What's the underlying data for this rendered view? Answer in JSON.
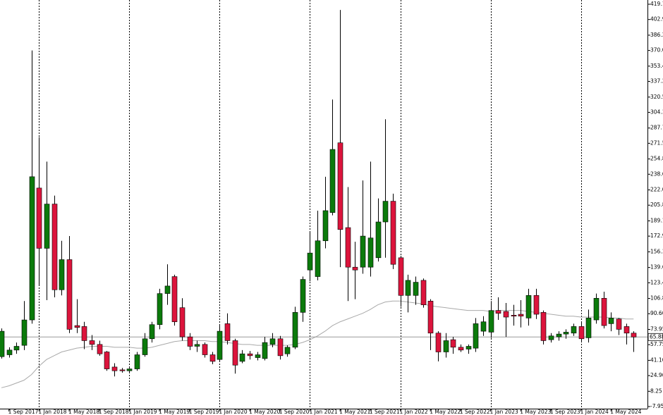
{
  "chart_data": {
    "type": "candlestick",
    "x": [
      "1 Aug 2017",
      "1 Sep 2017",
      "1 Oct 2017",
      "1 Nov 2017",
      "1 Dec 2017",
      "1 Jan 2018",
      "1 Feb 2018",
      "1 Mar 2018",
      "1 Apr 2018",
      "1 May 2018",
      "1 Jun 2018",
      "1 Jul 2018",
      "1 Aug 2018",
      "1 Sep 2018",
      "1 Oct 2018",
      "1 Nov 2018",
      "1 Dec 2018",
      "1 Jan 2019",
      "1 Feb 2019",
      "1 Mar 2019",
      "1 Apr 2019",
      "1 May 2019",
      "1 Jun 2019",
      "1 Jul 2019",
      "1 Aug 2019",
      "1 Sep 2019",
      "1 Oct 2019",
      "1 Nov 2019",
      "1 Dec 2019",
      "1 Jan 2020",
      "1 Feb 2020",
      "1 Mar 2020",
      "1 Apr 2020",
      "1 May 2020",
      "1 Jun 2020",
      "1 Jul 2020",
      "1 Aug 2020",
      "1 Sep 2020",
      "1 Oct 2020",
      "1 Nov 2020",
      "1 Dec 2020",
      "1 Jan 2021",
      "1 Feb 2021",
      "1 Mar 2021",
      "1 Apr 2021",
      "1 May 2021",
      "1 Jun 2021",
      "1 Jul 2021",
      "1 Aug 2021",
      "1 Sep 2021",
      "1 Oct 2021",
      "1 Nov 2021",
      "1 Dec 2021",
      "1 Jan 2022",
      "1 Feb 2022",
      "1 Mar 2022",
      "1 Apr 2022",
      "1 May 2022",
      "1 Jun 2022",
      "1 Jul 2022",
      "1 Aug 2022",
      "1 Sep 2022",
      "1 Oct 2022",
      "1 Nov 2022",
      "1 Dec 2022",
      "1 Jan 2023",
      "1 Feb 2023",
      "1 Mar 2023",
      "1 Apr 2023",
      "1 May 2023",
      "1 Jun 2023",
      "1 Jul 2023",
      "1 Aug 2023",
      "1 Sep 2023",
      "1 Oct 2023",
      "1 Nov 2023",
      "1 Dec 2023",
      "1 Jan 2024",
      "1 Feb 2024",
      "1 Mar 2024",
      "1 Apr 2024",
      "1 May 2024",
      "1 Jun 2024",
      "1 Jul 2024",
      "1 Aug 2024"
    ],
    "open": [
      45,
      47,
      52,
      57,
      84,
      224,
      160,
      207,
      116,
      148,
      78,
      77,
      62,
      58,
      50,
      34,
      31,
      30,
      32,
      47,
      64,
      79,
      112,
      130,
      97,
      66,
      56,
      58,
      47,
      42,
      80,
      62,
      40,
      48,
      44,
      43,
      58,
      64,
      48,
      55,
      92,
      137,
      130,
      168,
      198,
      272,
      182,
      140,
      140,
      140,
      150,
      188,
      210,
      150,
      110,
      110,
      126,
      104,
      70,
      50,
      63,
      55,
      53,
      54,
      72,
      71,
      94,
      93,
      89,
      90,
      86,
      110,
      92,
      63,
      66,
      69,
      70,
      77,
      65,
      84,
      107,
      80,
      85,
      77,
      70
    ],
    "high": [
      75,
      55,
      60,
      104,
      370,
      278,
      252,
      216,
      168,
      173,
      106,
      82,
      68,
      62,
      51,
      38,
      33,
      33,
      50,
      70,
      82,
      117,
      143,
      132,
      107,
      70,
      62,
      60,
      50,
      78,
      91,
      64,
      52,
      51,
      50,
      66,
      70,
      67,
      57,
      98,
      130,
      177,
      200,
      236,
      318,
      413,
      225,
      167,
      232,
      252,
      213,
      297,
      218,
      152,
      132,
      130,
      128,
      106,
      72,
      70,
      66,
      58,
      58,
      86,
      88,
      104,
      108,
      102,
      100,
      105,
      117,
      117,
      94,
      70,
      72,
      74,
      80,
      82,
      95,
      112,
      114,
      92,
      86,
      80,
      72
    ],
    "low": [
      43,
      44,
      48,
      52,
      80,
      120,
      105,
      108,
      110,
      70,
      70,
      53,
      52,
      46,
      30,
      24,
      28,
      28,
      30,
      45,
      60,
      74,
      100,
      78,
      62,
      52,
      50,
      44,
      37,
      40,
      58,
      27,
      38,
      42,
      41,
      41,
      55,
      42,
      45,
      53,
      82,
      125,
      126,
      160,
      195,
      140,
      104,
      106,
      133,
      130,
      146,
      150,
      138,
      98,
      92,
      100,
      97,
      52,
      40,
      44,
      48,
      50,
      48,
      50,
      67,
      65,
      84,
      66,
      78,
      76,
      78,
      85,
      58,
      60,
      62,
      64,
      67,
      60,
      60,
      80,
      75,
      72,
      68,
      58,
      50
    ],
    "close": [
      72,
      52,
      56,
      84,
      236,
      160,
      207,
      116,
      148,
      74,
      76,
      62,
      58,
      48,
      32,
      30,
      30,
      32,
      47,
      64,
      79,
      112,
      120,
      82,
      66,
      56,
      58,
      47,
      40,
      72,
      62,
      36,
      48,
      46,
      47,
      60,
      64,
      46,
      55,
      92,
      127,
      155,
      168,
      200,
      265,
      180,
      140,
      137,
      173,
      171,
      188,
      210,
      143,
      110,
      126,
      124,
      100,
      70,
      50,
      62,
      55,
      52,
      56,
      80,
      82,
      94,
      91,
      87,
      88,
      88,
      110,
      90,
      62,
      67,
      69,
      71,
      77,
      64,
      86,
      107,
      78,
      86,
      74,
      70,
      65.88
    ],
    "up_color": "#0b7a0b",
    "down_color": "#dc143c",
    "overlay": {
      "color": "#a9a9a9",
      "values": [
        12,
        14,
        17,
        20,
        26,
        35,
        42,
        46,
        50,
        52,
        54,
        55,
        56,
        56,
        56,
        55,
        55,
        55,
        54,
        54,
        55,
        57,
        59,
        61,
        62,
        62,
        62,
        62,
        61,
        61,
        60,
        59,
        58,
        58,
        57,
        57,
        57,
        57,
        57,
        58,
        60,
        63,
        67,
        72,
        78,
        82,
        85,
        88,
        91,
        95,
        100,
        103,
        104,
        104,
        103,
        102,
        101,
        99,
        98,
        97,
        96,
        95,
        94,
        94,
        94,
        93,
        94,
        94,
        94,
        94,
        93,
        92,
        91,
        90,
        89,
        88,
        88,
        87,
        87,
        87,
        87,
        86,
        86,
        85,
        85
      ]
    },
    "last_price": 65.88,
    "ylim": [
      -10.2,
      423.6
    ],
    "yticks": [
      {
        "value": 419.1,
        "label": "419.10"
      },
      {
        "value": 402.9,
        "label": "402.90"
      },
      386.25,
      370.05,
      {
        "value": 353.4,
        "label": "353.40"
      },
      {
        "value": 337.2,
        "label": "337.20"
      },
      320.55,
      304.35,
      {
        "value": 287.7,
        "label": "287.70"
      },
      {
        "value": 271.5,
        "label": "271.50"
      },
      254.85,
      238.65,
      {
        "value": 222,
        "label": "222.00"
      },
      {
        "value": 205.8,
        "label": "205.80"
      },
      189.15,
      172.95,
      {
        "value": 156.3,
        "label": "156.30"
      },
      139.65,
      123.45,
      {
        "value": 106.8,
        "label": "106.80"
      },
      {
        "value": 90.6,
        "label": "90.60"
      },
      73.95,
      57.75,
      {
        "value": 41.1,
        "label": "41.10"
      },
      {
        "value": 24.9,
        "label": "24.90"
      },
      8.25,
      -7.95
    ],
    "xticks": [
      "1 Sep 2017",
      "1 Jan 2018",
      "1 May 2018",
      "1 Sep 2018",
      "1 Jan 2019",
      "1 May 2019",
      "1 Sep 2019",
      "1 Jan 2020",
      "1 May 2020",
      "1 Sep 2020",
      "1 Jan 2021",
      "1 May 2021",
      "1 Sep 2021",
      "1 Jan 2022",
      "1 May 2022",
      "1 Sep 2022",
      "1 Jan 2023",
      "1 May 2023",
      "1 Sep 2023",
      "1 Jan 2024",
      "1 May 2024"
    ],
    "period_separators": [
      "1 Jan 2018",
      "1 Jan 2019",
      "1 Jan 2020",
      "1 Jan 2021",
      "1 Jan 2022",
      "1 Jan 2023",
      "1 Jan 2024"
    ]
  }
}
